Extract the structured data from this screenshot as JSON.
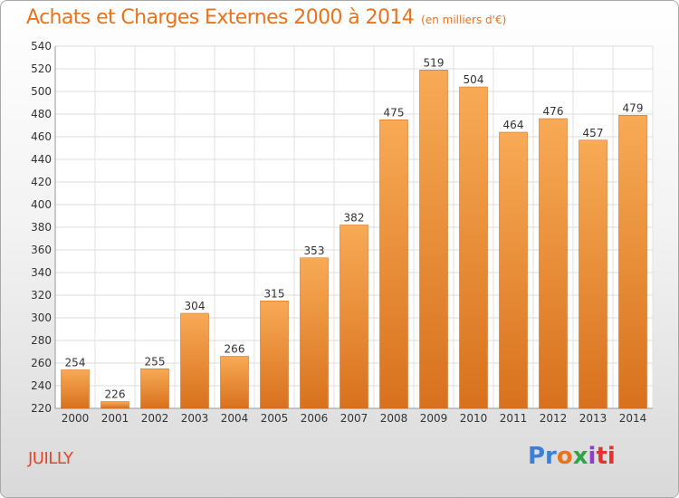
{
  "header": {
    "title": "Achats et Charges Externes 2000 à 2014",
    "subtitle": "(en milliers d'€)"
  },
  "footer": {
    "city": "JUILLY",
    "logo": "Proxiti",
    "logo_parts": [
      "Pr",
      "o",
      "x",
      "i",
      "ti"
    ]
  },
  "colors": {
    "title": "#e9731c",
    "bar_light": "#f7a54f",
    "bar_dark": "#d9731e",
    "city": "#e2462a"
  },
  "chart_data": {
    "type": "bar",
    "title": "Achats et Charges Externes 2000 à 2014",
    "subtitle": "(en milliers d'€)",
    "categories": [
      "2000",
      "2001",
      "2002",
      "2003",
      "2004",
      "2005",
      "2006",
      "2007",
      "2008",
      "2009",
      "2010",
      "2011",
      "2012",
      "2013",
      "2014"
    ],
    "values": [
      254,
      226,
      255,
      304,
      266,
      315,
      353,
      382,
      475,
      519,
      504,
      464,
      476,
      457,
      479
    ],
    "ylim": [
      220,
      540
    ],
    "yticks": [
      220,
      240,
      260,
      280,
      300,
      320,
      340,
      360,
      380,
      400,
      420,
      440,
      460,
      480,
      500,
      520,
      540
    ],
    "grid": true,
    "xlabel": "",
    "ylabel": ""
  }
}
